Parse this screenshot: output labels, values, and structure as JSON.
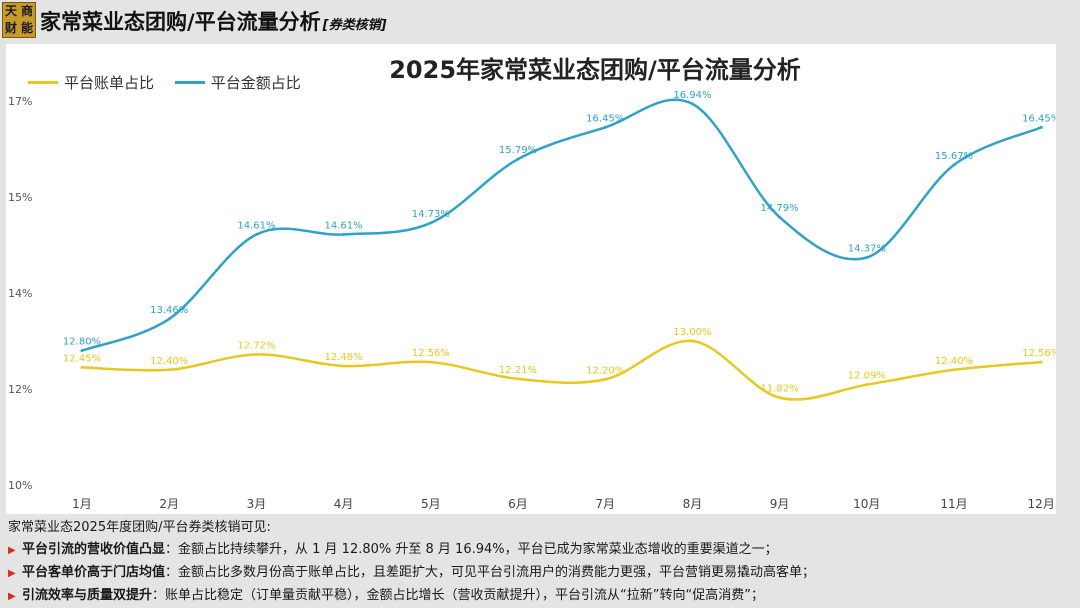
{
  "header": {
    "logo": [
      "天",
      "商",
      "财",
      "能"
    ],
    "title": "家常菜业态团购/平台流量分析",
    "subtitle": "[券类核销]"
  },
  "colors": {
    "bill_ratio": "#e8c81e",
    "amount_ratio": "#2ea3c7"
  },
  "chart_data": {
    "type": "line",
    "title": "2025年家常菜业态团购/平台流量分析",
    "categories": [
      "1月",
      "2月",
      "3月",
      "4月",
      "5月",
      "6月",
      "7月",
      "8月",
      "9月",
      "10月",
      "11月",
      "12月"
    ],
    "series": [
      {
        "name": "平台账单占比",
        "color": "#e8c81e",
        "values": [
          12.45,
          12.4,
          12.72,
          12.48,
          12.56,
          12.21,
          12.2,
          13.0,
          11.82,
          12.09,
          12.4,
          12.56
        ],
        "labels": [
          "12.45%",
          "12.40%",
          "12.72%",
          "12.48%",
          "12.56%",
          "12.21%",
          "12.20%",
          "13.00%",
          "11.82%",
          "12.09%",
          "12.40%",
          "12.56%"
        ]
      },
      {
        "name": "平台金额占比",
        "color": "#2ea3c7",
        "values": [
          12.8,
          13.46,
          14.61,
          14.61,
          14.73,
          15.79,
          16.45,
          16.94,
          14.79,
          14.37,
          15.67,
          16.45
        ],
        "labels": [
          "12.80%",
          "13.46%",
          "14.61%",
          "14.61%",
          "14.73%",
          "15.79%",
          "16.45%",
          "16.94%",
          "14.79%",
          "14.37%",
          "15.67%",
          "16.45%"
        ]
      }
    ],
    "yticks": [
      10,
      12,
      14,
      15,
      17
    ],
    "ytick_labels": [
      "10%",
      "12%",
      "14%",
      "15%",
      "17%"
    ],
    "grid": false,
    "legend": "top-left"
  },
  "notes": {
    "intro": "家常菜业态2025年度团购/平台券类核销可见:",
    "items": [
      {
        "head": "平台引流的营收价值凸显",
        "text": "：金额占比持续攀升，从 1 月 12.80% 升至 8 月 16.94%，平台已成为家常菜业态增收的重要渠道之一；"
      },
      {
        "head": "平台客单价高于门店均值",
        "text": "：金额占比多数月份高于账单占比，且差距扩大，可见平台引流用户的消费能力更强，平台营销更易撬动高客单；"
      },
      {
        "head": "引流效率与质量双提升",
        "text": "：账单占比稳定（订单量贡献平稳），金额占比增长（营收贡献提升），平台引流从“拉新”转向“促高消费”；"
      }
    ]
  }
}
